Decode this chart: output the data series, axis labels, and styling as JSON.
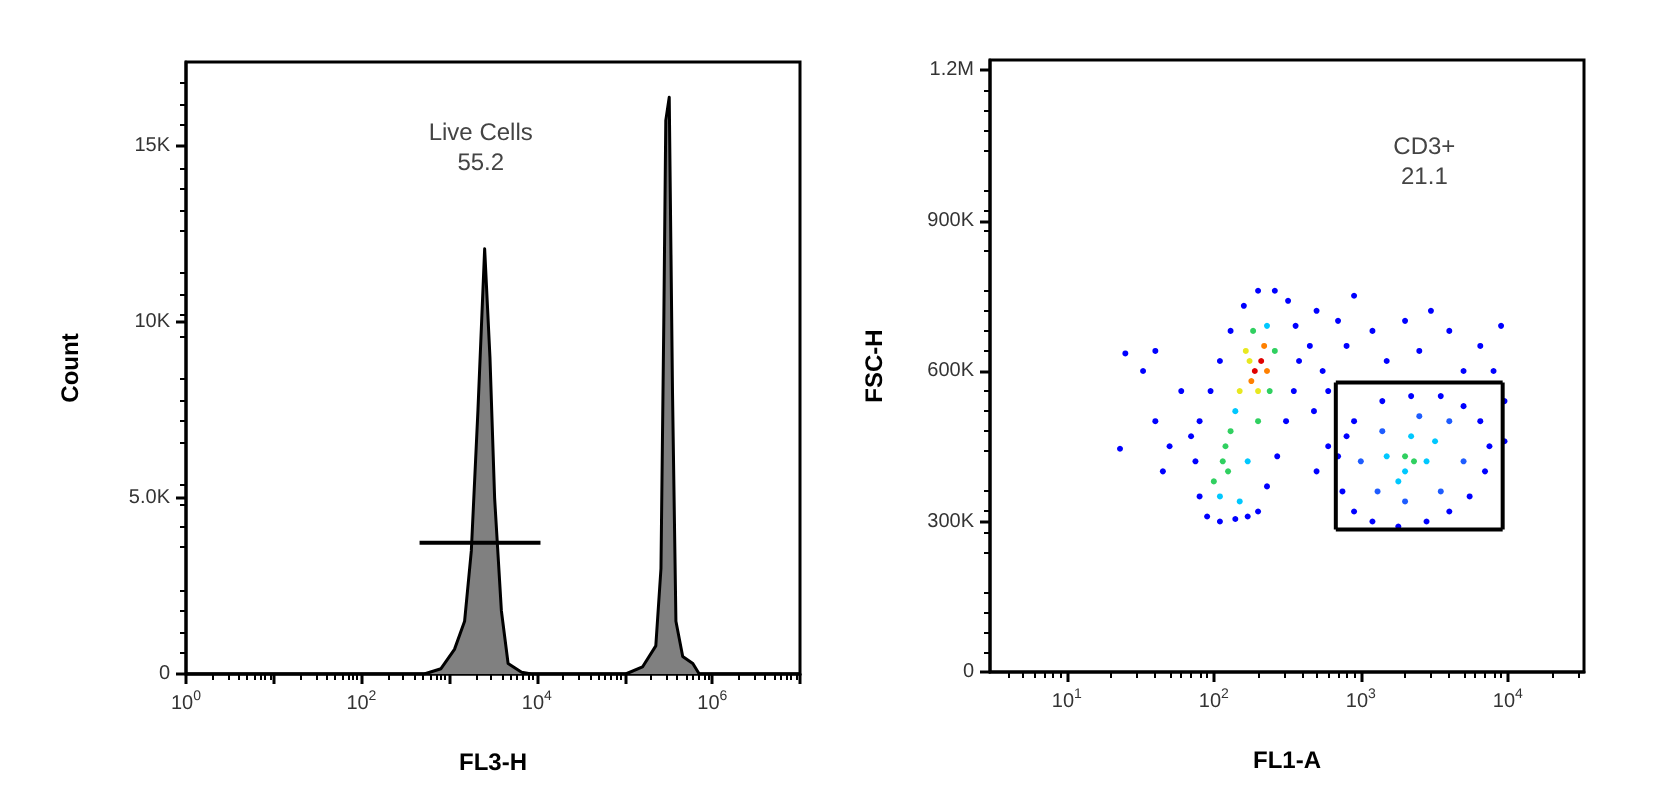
{
  "chart_data": [
    {
      "type": "area",
      "xlabel": "FL3-H",
      "ylabel": "Count",
      "log": "x",
      "xlim": [
        1,
        10000000
      ],
      "ylim": [
        0,
        17400
      ],
      "xticks": [
        {
          "value": 1,
          "label": "10$^{0}$"
        },
        {
          "value": 10,
          "label": null
        },
        {
          "value": 100,
          "label": "10$^{2}$"
        },
        {
          "value": 1000,
          "label": null
        },
        {
          "value": 10000,
          "label": "10$^{4}$"
        },
        {
          "value": 100000,
          "label": null
        },
        {
          "value": 1000000,
          "label": "10$^{6}$"
        },
        {
          "value": 10000000,
          "label": null
        }
      ],
      "yticks": [
        0,
        {
          "value": 5000,
          "label": "5.0K"
        },
        {
          "value": 10000,
          "label": "10K"
        },
        {
          "value": 15000,
          "label": "15K"
        }
      ],
      "grid": false,
      "marker": "none",
      "annotations": [
        "Live Cells",
        "55.2"
      ],
      "series": [
        {
          "color": "#808080",
          "x": [
            1,
            520,
            807,
            1150,
            1500,
            1790,
            2130,
            2540,
            2920,
            3300,
            3940,
            4700,
            6700,
            8700,
            103000,
            160000,
            227000,
            260000,
            280000,
            295000,
            323000,
            352000,
            385000,
            460000,
            600000,
            710000,
            10000000
          ],
          "values": [
            0,
            0,
            150,
            700,
            1500,
            3500,
            7500,
            12090,
            9000,
            5000,
            1800,
            300,
            50,
            0,
            0,
            200,
            800,
            3000,
            10000,
            15740,
            16400,
            8000,
            1500,
            500,
            300,
            0,
            0
          ]
        },
        {
          "type": "line",
          "color": "#000000",
          "x": [
            460,
            11000
          ],
          "values": [
            3730,
            3730
          ]
        }
      ]
    },
    {
      "type": "scatter",
      "xlabel": "FL1-A",
      "ylabel": "FSC-H",
      "log": "x",
      "xlim": [
        3,
        33000
      ],
      "ylim": [
        0,
        1220000
      ],
      "xticks": [
        {
          "value": 10,
          "label": "10$^{1}$"
        },
        {
          "value": 100,
          "label": "10$^{2}$"
        },
        {
          "value": 1000,
          "label": "10$^{3}$"
        },
        {
          "value": 10000,
          "label": "10$^{4}$"
        }
      ],
      "yticks": [
        0,
        {
          "value": 300000,
          "label": "300K"
        },
        {
          "value": 600000,
          "label": "600K"
        },
        {
          "value": 900000,
          "label": "900K"
        },
        {
          "value": 1200000,
          "label": "1.2M"
        }
      ],
      "grid": false,
      "annotations": [
        "CD3+",
        "21.1"
      ],
      "series": [
        {
          "x": [
            90,
            110,
            140,
            170,
            80,
            75,
            80,
            95,
            110,
            130,
            160,
            200,
            260,
            320,
            360,
            380,
            350,
            310,
            270,
            230,
            200,
            60,
            50,
            40,
            70,
            25,
            23,
            33,
            45,
            40,
            100,
            115,
            120,
            110,
            130,
            140,
            150,
            170,
            125,
            150,
            165,
            185,
            230,
            260,
            240,
            200,
            190,
            210,
            180,
            220,
            200,
            230,
            175,
            450,
            500,
            550,
            600,
            480,
            700,
            800,
            900,
            1200,
            1500,
            2000,
            2500,
            3000,
            4000,
            5000,
            6500,
            9000,
            8000,
            9500,
            9500,
            600,
            500,
            700,
            750,
            900,
            1200,
            1800,
            2800,
            4000,
            5500,
            7000,
            7500,
            6500,
            5000,
            3500,
            2200,
            1400,
            900,
            800,
            1000,
            1300,
            2000,
            3500,
            5000,
            4000,
            2500,
            1400,
            1500,
            2000,
            2800,
            3200,
            2200,
            1800,
            2000,
            2300
          ],
          "values": [
            310000,
            300000,
            305000,
            310000,
            350000,
            420000,
            500000,
            560000,
            620000,
            680000,
            730000,
            760000,
            760000,
            740000,
            690000,
            620000,
            560000,
            500000,
            430000,
            370000,
            320000,
            560000,
            450000,
            640000,
            470000,
            635000,
            445000,
            600000,
            400000,
            500000,
            380000,
            420000,
            450000,
            350000,
            480000,
            520000,
            340000,
            420000,
            400000,
            560000,
            640000,
            680000,
            690000,
            640000,
            560000,
            500000,
            600000,
            620000,
            580000,
            650000,
            560000,
            600000,
            620000,
            650000,
            720000,
            600000,
            560000,
            520000,
            700000,
            650000,
            750000,
            680000,
            620000,
            700000,
            640000,
            720000,
            680000,
            600000,
            650000,
            690000,
            600000,
            540000,
            460000,
            450000,
            400000,
            430000,
            360000,
            320000,
            300000,
            290000,
            300000,
            320000,
            350000,
            400000,
            450000,
            500000,
            530000,
            550000,
            550000,
            540000,
            500000,
            470000,
            420000,
            360000,
            340000,
            360000,
            420000,
            500000,
            510000,
            480000,
            430000,
            400000,
            420000,
            460000,
            470000,
            380000,
            430000,
            420000
          ],
          "colors": [
            "#0000ff",
            "#0000ff",
            "#0000ff",
            "#0000ff",
            "#0000ff",
            "#0000ff",
            "#0000ff",
            "#0000ff",
            "#0000ff",
            "#0000ff",
            "#0000ff",
            "#0000ff",
            "#0000ff",
            "#0000ff",
            "#0000ff",
            "#0000ff",
            "#0000ff",
            "#0000ff",
            "#0000ff",
            "#0000ff",
            "#0000ff",
            "#0000ff",
            "#0000ff",
            "#0000ff",
            "#0000ff",
            "#0000ff",
            "#0000ff",
            "#0000ff",
            "#0000ff",
            "#0000ff",
            "#30d060",
            "#30d060",
            "#30d060",
            "#00c8ff",
            "#30d060",
            "#00c8ff",
            "#00c8ff",
            "#00c8ff",
            "#30d060",
            "#e8e820",
            "#e8e820",
            "#30d060",
            "#00c8ff",
            "#30d060",
            "#30d060",
            "#30d060",
            "#e00000",
            "#e00000",
            "#ff8000",
            "#ff8000",
            "#e8e820",
            "#ff8000",
            "#e8e820",
            "#0000ff",
            "#0000ff",
            "#0000ff",
            "#0000ff",
            "#0000ff",
            "#0000ff",
            "#0000ff",
            "#0000ff",
            "#0000ff",
            "#0000ff",
            "#0000ff",
            "#0000ff",
            "#0000ff",
            "#0000ff",
            "#0000ff",
            "#0000ff",
            "#0000ff",
            "#0000ff",
            "#0000ff",
            "#0000ff",
            "#0000ff",
            "#0000ff",
            "#0000ff",
            "#0000ff",
            "#0000ff",
            "#0000ff",
            "#0000ff",
            "#0000ff",
            "#0000ff",
            "#0000ff",
            "#0000ff",
            "#0000ff",
            "#0000ff",
            "#0000ff",
            "#0000ff",
            "#0000ff",
            "#0000ff",
            "#0000ff",
            "#0000ff",
            "#1e5cff",
            "#1e5cff",
            "#1e5cff",
            "#1e5cff",
            "#1e5cff",
            "#1e5cff",
            "#1e5cff",
            "#1e5cff",
            "#00c8ff",
            "#00c8ff",
            "#00c8ff",
            "#00c8ff",
            "#00c8ff",
            "#00c8ff",
            "#30d060",
            "#30d060"
          ]
        },
        {
          "type": "line",
          "color": "#000000",
          "x": [
            676,
            9230
          ],
          "values": [
            577000,
            577000
          ]
        },
        {
          "type": "line",
          "color": "#000000",
          "x": [
            676,
            9230
          ],
          "values": [
            284000,
            284000
          ]
        },
        {
          "type": "line",
          "color": "#000000",
          "x": [
            676,
            676
          ],
          "values": [
            284000,
            577000
          ]
        },
        {
          "type": "line",
          "color": "#000000",
          "x": [
            9230,
            9230
          ],
          "values": [
            284000,
            577000
          ]
        }
      ]
    }
  ]
}
